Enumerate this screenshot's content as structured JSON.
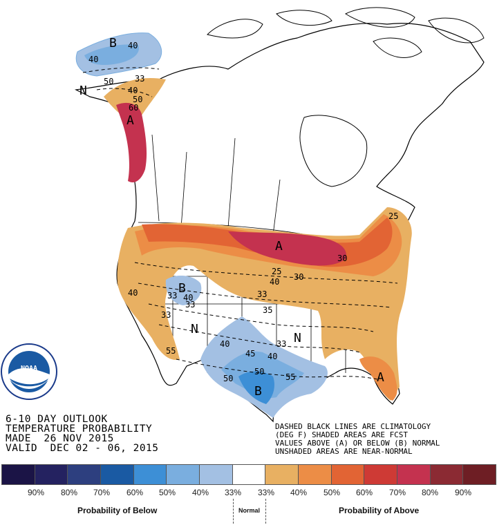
{
  "title": {
    "line1": "6-10 DAY OUTLOOK",
    "line2": "TEMPERATURE PROBABILITY",
    "line3": "MADE  26 NOV 2015",
    "line4": "VALID  DEC 02 - 06, 2015"
  },
  "note": {
    "line1": "DASHED BLACK LINES ARE CLIMATOLOGY",
    "line2": "(DEG F) SHADED AREAS ARE FCST",
    "line3": "VALUES ABOVE (A) OR BELOW (B) NORMAL",
    "line4": "UNSHADED AREAS ARE NEAR-NORMAL"
  },
  "logo": {
    "text": "NOAA",
    "ring_text": "U.S. DEPARTMENT OF COMMERCE • NATIONAL OCEANIC AND ATMOSPHERIC ADMINISTRATION"
  },
  "legend": {
    "below_label": "Probability of Below",
    "normal_label": "Normal",
    "above_label": "Probability of Above",
    "percents": [
      "90%",
      "80%",
      "70%",
      "60%",
      "50%",
      "40%",
      "33%",
      "33%",
      "40%",
      "50%",
      "60%",
      "70%",
      "80%",
      "90%"
    ],
    "colors": [
      "#1b1446",
      "#242260",
      "#2d3f7f",
      "#1a5aa3",
      "#3d8fd6",
      "#7aaedf",
      "#a3c0e3",
      "#ffffff",
      "#e8b062",
      "#ec8d46",
      "#e26434",
      "#ce3a35",
      "#c4324f",
      "#8b2a33",
      "#6e1e24"
    ]
  },
  "map": {
    "markers": [
      {
        "text": "B",
        "kind": "below"
      },
      {
        "text": "A",
        "kind": "above"
      },
      {
        "text": "N",
        "kind": "normal"
      },
      {
        "text": "A",
        "kind": "above"
      },
      {
        "text": "B",
        "kind": "below"
      },
      {
        "text": "N",
        "kind": "normal"
      },
      {
        "text": "N",
        "kind": "normal"
      },
      {
        "text": "B",
        "kind": "below"
      },
      {
        "text": "A",
        "kind": "above"
      }
    ],
    "contour_labels": [
      "40",
      "40",
      "33",
      "40",
      "50",
      "60",
      "50",
      "25",
      "40",
      "30",
      "33",
      "30",
      "25",
      "40",
      "33",
      "40",
      "33",
      "35",
      "33",
      "40",
      "45",
      "50",
      "55",
      "40",
      "33",
      "50",
      "55"
    ]
  }
}
